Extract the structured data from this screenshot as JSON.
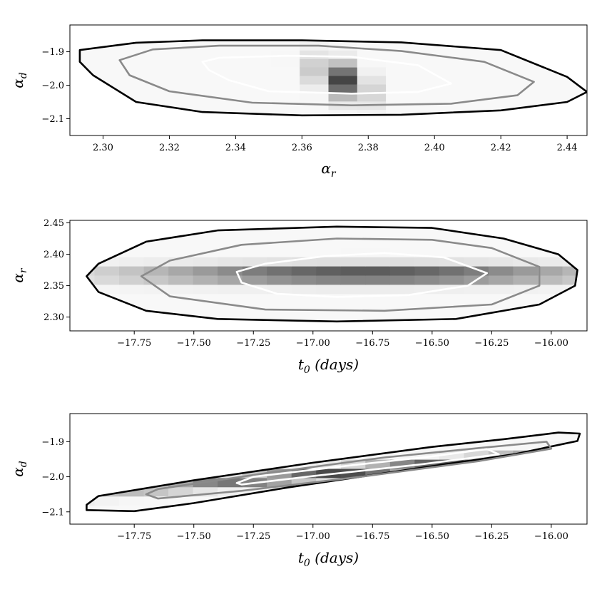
{
  "chart_data": [
    {
      "type": "heatmap",
      "xlabel": "α_r",
      "ylabel": "α_d",
      "xlim": [
        2.29,
        2.446
      ],
      "ylim": [
        -2.15,
        -1.82
      ],
      "xticks": [
        "2.30",
        "2.32",
        "2.34",
        "2.36",
        "2.38",
        "2.40",
        "2.42",
        "2.44"
      ],
      "yticks": [
        "−1.9",
        "−2.0",
        "−2.1"
      ],
      "center": [
        2.372,
        -1.985
      ],
      "contours": [
        {
          "level": "outer",
          "color": "#000000",
          "points": [
            [
              2.293,
              -1.895
            ],
            [
              2.31,
              -1.873
            ],
            [
              2.33,
              -1.866
            ],
            [
              2.36,
              -1.866
            ],
            [
              2.39,
              -1.872
            ],
            [
              2.42,
              -1.895
            ],
            [
              2.44,
              -1.975
            ],
            [
              2.446,
              -2.02
            ],
            [
              2.44,
              -2.05
            ],
            [
              2.42,
              -2.075
            ],
            [
              2.39,
              -2.088
            ],
            [
              2.36,
              -2.09
            ],
            [
              2.33,
              -2.08
            ],
            [
              2.31,
              -2.05
            ],
            [
              2.297,
              -1.97
            ],
            [
              2.293,
              -1.93
            ],
            [
              2.293,
              -1.895
            ]
          ]
        },
        {
          "level": "middle",
          "color": "#8a8a8a",
          "points": [
            [
              2.305,
              -1.925
            ],
            [
              2.315,
              -1.893
            ],
            [
              2.335,
              -1.882
            ],
            [
              2.365,
              -1.882
            ],
            [
              2.39,
              -1.898
            ],
            [
              2.415,
              -1.93
            ],
            [
              2.43,
              -1.99
            ],
            [
              2.425,
              -2.03
            ],
            [
              2.405,
              -2.055
            ],
            [
              2.375,
              -2.06
            ],
            [
              2.345,
              -2.052
            ],
            [
              2.32,
              -2.018
            ],
            [
              2.308,
              -1.97
            ],
            [
              2.305,
              -1.925
            ]
          ]
        },
        {
          "level": "inner",
          "color": "#ffffff",
          "points": [
            [
              2.33,
              -1.93
            ],
            [
              2.335,
              -1.918
            ],
            [
              2.355,
              -1.912
            ],
            [
              2.375,
              -1.915
            ],
            [
              2.395,
              -1.94
            ],
            [
              2.405,
              -1.995
            ],
            [
              2.395,
              -2.02
            ],
            [
              2.375,
              -2.025
            ],
            [
              2.35,
              -2.018
            ],
            [
              2.338,
              -1.985
            ],
            [
              2.332,
              -1.955
            ],
            [
              2.33,
              -1.93
            ]
          ]
        }
      ],
      "heatmap": {
        "nx": 18,
        "ny": 13,
        "sx": 0.042,
        "sy": 0.062,
        "rho": -0.5
      }
    },
    {
      "type": "heatmap",
      "xlabel": "t_0 (days)",
      "ylabel": "α_r",
      "xlim": [
        -18.02,
        -15.85
      ],
      "ylim": [
        2.278,
        2.454
      ],
      "xticks": [
        "−17.75",
        "−17.50",
        "−17.25",
        "−17.00",
        "−16.75",
        "−16.50",
        "−16.25",
        "−16.00"
      ],
      "yticks": [
        "2.30",
        "2.35",
        "2.40",
        "2.45"
      ],
      "center": [
        -16.78,
        2.368
      ],
      "contours": [
        {
          "level": "outer",
          "color": "#000000",
          "points": [
            [
              -17.95,
              2.365
            ],
            [
              -17.9,
              2.385
            ],
            [
              -17.7,
              2.42
            ],
            [
              -17.4,
              2.438
            ],
            [
              -16.9,
              2.444
            ],
            [
              -16.5,
              2.442
            ],
            [
              -16.2,
              2.425
            ],
            [
              -15.97,
              2.4
            ],
            [
              -15.89,
              2.375
            ],
            [
              -15.9,
              2.35
            ],
            [
              -16.05,
              2.32
            ],
            [
              -16.4,
              2.297
            ],
            [
              -16.9,
              2.293
            ],
            [
              -17.4,
              2.297
            ],
            [
              -17.7,
              2.31
            ],
            [
              -17.9,
              2.34
            ],
            [
              -17.95,
              2.365
            ]
          ]
        },
        {
          "level": "middle",
          "color": "#8a8a8a",
          "points": [
            [
              -17.72,
              2.365
            ],
            [
              -17.6,
              2.39
            ],
            [
              -17.3,
              2.415
            ],
            [
              -16.9,
              2.425
            ],
            [
              -16.5,
              2.423
            ],
            [
              -16.25,
              2.41
            ],
            [
              -16.05,
              2.38
            ],
            [
              -16.05,
              2.35
            ],
            [
              -16.25,
              2.32
            ],
            [
              -16.7,
              2.31
            ],
            [
              -17.2,
              2.312
            ],
            [
              -17.6,
              2.333
            ],
            [
              -17.72,
              2.365
            ]
          ]
        },
        {
          "level": "inner",
          "color": "#ffffff",
          "points": [
            [
              -17.32,
              2.372
            ],
            [
              -17.2,
              2.385
            ],
            [
              -16.95,
              2.397
            ],
            [
              -16.7,
              2.402
            ],
            [
              -16.45,
              2.395
            ],
            [
              -16.27,
              2.37
            ],
            [
              -16.35,
              2.35
            ],
            [
              -16.6,
              2.335
            ],
            [
              -16.9,
              2.332
            ],
            [
              -17.15,
              2.337
            ],
            [
              -17.3,
              2.355
            ],
            [
              -17.32,
              2.372
            ]
          ]
        }
      ],
      "heatmap": {
        "nx": 21,
        "ny": 12,
        "sx": 0.4,
        "sy": 0.03,
        "rho": 0.0
      }
    },
    {
      "type": "heatmap",
      "xlabel": "t_0 (days)",
      "ylabel": "α_d",
      "xlim": [
        -18.02,
        -15.85
      ],
      "ylim": [
        -2.135,
        -1.82
      ],
      "xticks": [
        "−17.75",
        "−17.50",
        "−17.25",
        "−17.00",
        "−16.75",
        "−16.50",
        "−16.25",
        "−16.00"
      ],
      "yticks": [
        "−1.9",
        "−2.0",
        "−2.1"
      ],
      "center": [
        -16.8,
        -1.985
      ],
      "contours": [
        {
          "level": "outer",
          "color": "#000000",
          "points": [
            [
              -17.95,
              -2.08
            ],
            [
              -17.9,
              -2.055
            ],
            [
              -17.5,
              -2.01
            ],
            [
              -17.0,
              -1.96
            ],
            [
              -16.5,
              -1.915
            ],
            [
              -16.2,
              -1.893
            ],
            [
              -15.97,
              -1.874
            ],
            [
              -15.88,
              -1.877
            ],
            [
              -15.89,
              -1.898
            ],
            [
              -16.15,
              -1.935
            ],
            [
              -16.6,
              -1.98
            ],
            [
              -17.1,
              -2.03
            ],
            [
              -17.5,
              -2.075
            ],
            [
              -17.75,
              -2.098
            ],
            [
              -17.95,
              -2.095
            ],
            [
              -17.95,
              -2.08
            ]
          ]
        },
        {
          "level": "middle",
          "color": "#8a8a8a",
          "points": [
            [
              -17.7,
              -2.05
            ],
            [
              -17.65,
              -2.035
            ],
            [
              -17.2,
              -1.99
            ],
            [
              -16.7,
              -1.945
            ],
            [
              -16.3,
              -1.918
            ],
            [
              -16.02,
              -1.9
            ],
            [
              -16.0,
              -1.92
            ],
            [
              -16.3,
              -1.955
            ],
            [
              -16.8,
              -2.0
            ],
            [
              -17.3,
              -2.04
            ],
            [
              -17.65,
              -2.062
            ],
            [
              -17.7,
              -2.05
            ]
          ]
        },
        {
          "level": "inner",
          "color": "#ffffff",
          "points": [
            [
              -17.32,
              -2.018
            ],
            [
              -17.25,
              -2.0
            ],
            [
              -16.9,
              -1.972
            ],
            [
              -16.5,
              -1.942
            ],
            [
              -16.27,
              -1.921
            ],
            [
              -16.22,
              -1.936
            ],
            [
              -16.55,
              -1.965
            ],
            [
              -17.0,
              -1.998
            ],
            [
              -17.3,
              -2.022
            ],
            [
              -17.32,
              -2.018
            ]
          ]
        }
      ],
      "heatmap": {
        "nx": 21,
        "ny": 12,
        "sx": 0.42,
        "sy": 0.065,
        "rho": 0.95
      }
    }
  ]
}
